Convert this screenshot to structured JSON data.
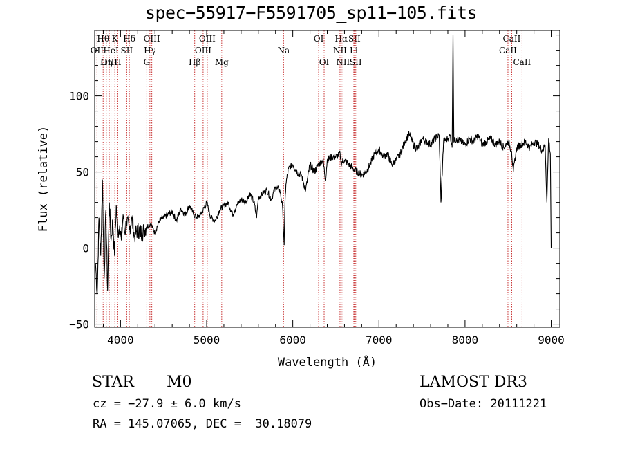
{
  "chart_data": {
    "type": "line",
    "title": "spec−55917−F5591705_sp11−105.fits",
    "xlabel": "Wavelength (Å)",
    "ylabel": "Flux (relative)",
    "xlim": [
      3700,
      9100
    ],
    "ylim": [
      -52,
      143
    ],
    "x_ticks": [
      4000,
      5000,
      6000,
      7000,
      8000,
      9000
    ],
    "x_tick_labels": [
      "4000",
      "5000",
      "6000",
      "7000",
      "8000",
      "9000"
    ],
    "y_ticks": [
      -50,
      0,
      50,
      100
    ],
    "y_tick_labels": [
      "−50",
      "0",
      "50",
      "100"
    ],
    "series": [
      {
        "name": "flux",
        "x": [
          3710,
          3730,
          3750,
          3770,
          3790,
          3810,
          3830,
          3850,
          3870,
          3890,
          3910,
          3930,
          3950,
          3970,
          3990,
          4010,
          4030,
          4050,
          4070,
          4100,
          4130,
          4160,
          4200,
          4250,
          4300,
          4350,
          4400,
          4450,
          4500,
          4550,
          4600,
          4650,
          4700,
          4750,
          4800,
          4850,
          4900,
          4950,
          5000,
          5050,
          5100,
          5150,
          5200,
          5250,
          5300,
          5350,
          5400,
          5450,
          5500,
          5550,
          5580,
          5600,
          5650,
          5700,
          5750,
          5800,
          5850,
          5880,
          5900,
          5910,
          5920,
          5950,
          6000,
          6050,
          6100,
          6150,
          6200,
          6250,
          6300,
          6350,
          6380,
          6400,
          6450,
          6500,
          6550,
          6560,
          6600,
          6650,
          6700,
          6750,
          6800,
          6850,
          6900,
          6950,
          7000,
          7050,
          7100,
          7150,
          7200,
          7250,
          7300,
          7350,
          7400,
          7450,
          7500,
          7550,
          7600,
          7650,
          7700,
          7720,
          7750,
          7800,
          7830,
          7850,
          7860,
          7870,
          7900,
          7950,
          8000,
          8050,
          8100,
          8150,
          8200,
          8250,
          8300,
          8350,
          8400,
          8450,
          8500,
          8540,
          8560,
          8600,
          8650,
          8700,
          8750,
          8800,
          8850,
          8900,
          8930,
          8950,
          8970,
          8990,
          9000
        ],
        "values": [
          -10,
          -30,
          20,
          -5,
          45,
          -20,
          25,
          -28,
          30,
          5,
          18,
          -5,
          28,
          10,
          15,
          5,
          22,
          10,
          18,
          12,
          20,
          8,
          12,
          10,
          14,
          16,
          10,
          18,
          20,
          22,
          24,
          18,
          26,
          22,
          28,
          22,
          20,
          24,
          30,
          20,
          18,
          25,
          28,
          30,
          22,
          28,
          32,
          30,
          36,
          30,
          20,
          33,
          36,
          38,
          32,
          40,
          38,
          28,
          2,
          30,
          42,
          52,
          55,
          50,
          48,
          38,
          55,
          50,
          55,
          58,
          45,
          58,
          60,
          60,
          62,
          56,
          58,
          55,
          52,
          50,
          48,
          50,
          55,
          62,
          65,
          60,
          62,
          55,
          58,
          62,
          70,
          75,
          68,
          65,
          72,
          70,
          68,
          72,
          74,
          30,
          70,
          72,
          74,
          66,
          140,
          70,
          72,
          70,
          68,
          72,
          70,
          74,
          68,
          70,
          72,
          68,
          70,
          66,
          70,
          64,
          50,
          66,
          68,
          70,
          66,
          70,
          68,
          64,
          68,
          30,
          72,
          62,
          0
        ]
      }
    ],
    "lines": [
      {
        "name": "Hθ",
        "x": 3798,
        "row": 0
      },
      {
        "name": "OII",
        "x": 3727,
        "row": 1
      },
      {
        "name": "OIII",
        "x": 3869,
        "row": 2
      },
      {
        "name": "K",
        "x": 3934,
        "row": 0
      },
      {
        "name": "HeI",
        "x": 3889,
        "row": 1
      },
      {
        "name": "Hη",
        "x": 3835,
        "row": 2
      },
      {
        "name": "H",
        "x": 3968,
        "row": 2
      },
      {
        "name": "SII",
        "x": 4072,
        "row": 1
      },
      {
        "name": "Hδ",
        "x": 4102,
        "row": 0
      },
      {
        "name": "OIII",
        "x": 4363,
        "row": 0
      },
      {
        "name": "Hγ",
        "x": 4341,
        "row": 1
      },
      {
        "name": "G",
        "x": 4305,
        "row": 2
      },
      {
        "name": "Hβ",
        "x": 4861,
        "row": 2
      },
      {
        "name": "OIII",
        "x": 5007,
        "row": 0
      },
      {
        "name": "OIII",
        "x": 4959,
        "row": 1
      },
      {
        "name": "Mg",
        "x": 5175,
        "row": 2
      },
      {
        "name": "Na",
        "x": 5893,
        "row": 1
      },
      {
        "name": "OI",
        "x": 6300,
        "row": 0
      },
      {
        "name": "OI",
        "x": 6364,
        "row": 2
      },
      {
        "name": "Hα",
        "x": 6563,
        "row": 0
      },
      {
        "name": "SII",
        "x": 6716,
        "row": 0
      },
      {
        "name": "NII",
        "x": 6548,
        "row": 1
      },
      {
        "name": "Li",
        "x": 6708,
        "row": 1
      },
      {
        "name": "NII",
        "x": 6583,
        "row": 2
      },
      {
        "name": "SII",
        "x": 6731,
        "row": 2
      },
      {
        "name": "CaII",
        "x": 8542,
        "row": 0
      },
      {
        "name": "CaII",
        "x": 8498,
        "row": 1
      },
      {
        "name": "CaII",
        "x": 8662,
        "row": 2
      }
    ]
  },
  "info": {
    "class": "STAR",
    "subclass": "M0",
    "survey": "LAMOST DR3",
    "cz": "cz = −27.9 ± 6.0 km/s",
    "obs_date": "Obs−Date: 20111221",
    "coords": "RA = 145.07065, DEC =  30.18079"
  },
  "colors": {
    "line_marker": "#c83232",
    "spectrum": "#000000"
  }
}
